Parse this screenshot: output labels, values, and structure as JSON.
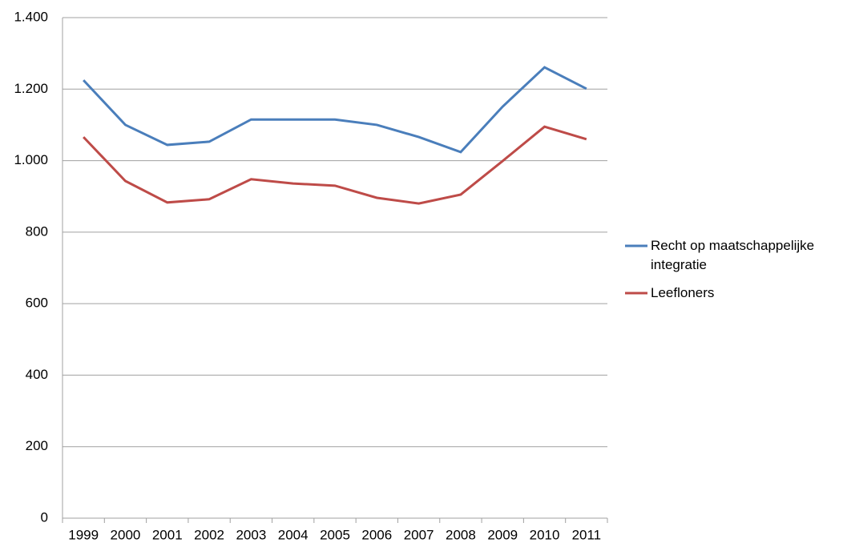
{
  "chart_data": {
    "type": "line",
    "categories": [
      "1999",
      "2000",
      "2001",
      "2002",
      "2003",
      "2004",
      "2005",
      "2006",
      "2007",
      "2008",
      "2009",
      "2010",
      "2011"
    ],
    "series": [
      {
        "name": "Recht op maatschappelijke integratie",
        "color": "#4a7ebb",
        "values": [
          1225,
          1100,
          1044,
          1053,
          1115,
          1115,
          1115,
          1100,
          1066,
          1024,
          1151,
          1261,
          1201
        ]
      },
      {
        "name": "Leefloners",
        "color": "#be4b48",
        "values": [
          1066,
          943,
          883,
          892,
          948,
          936,
          930,
          896,
          880,
          905,
          999,
          1095,
          1060
        ]
      }
    ],
    "ylim": [
      0,
      1400
    ],
    "yticks": [
      0,
      200,
      400,
      600,
      800,
      {
        "value": 1000,
        "label": "1.000"
      },
      {
        "value": 1200,
        "label": "1.200"
      },
      {
        "value": 1400,
        "label": "1.400"
      }
    ],
    "grid": true,
    "legend": "right"
  }
}
